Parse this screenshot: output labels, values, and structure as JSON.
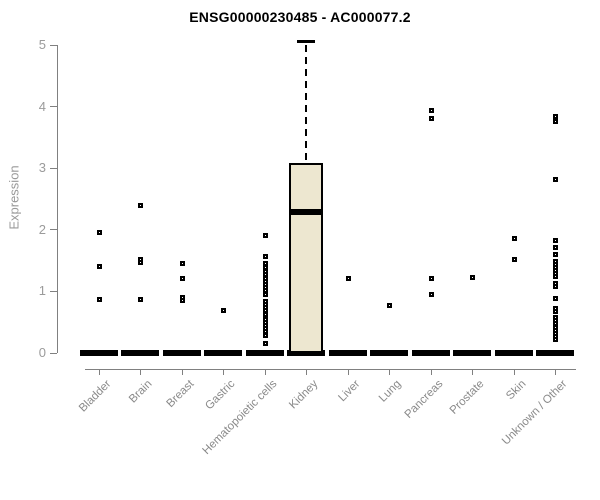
{
  "chart_data": {
    "type": "boxplot",
    "title": "ENSG00000230485 - AC000077.2",
    "ylabel": "Expression",
    "ylim": [
      0,
      5
    ],
    "yticks": [
      0,
      1,
      2,
      3,
      4,
      5
    ],
    "grid": false,
    "legend": "none",
    "colors": {
      "box_fill": "#EDE7D0",
      "box_line": "#000000",
      "axis": "#808080",
      "tick_label": "#9b9b9b",
      "category_label": "#8a8a8a",
      "title": "#000000"
    },
    "categories": [
      "Bladder",
      "Brain",
      "Breast",
      "Gastric",
      "Hematopoietic cells",
      "Kidney",
      "Liver",
      "Lung",
      "Pancreas",
      "Prostate",
      "Skin",
      "Unknown / Other"
    ],
    "series": [
      {
        "category": "Bladder",
        "box": {
          "q1": 0,
          "median": 0,
          "q3": 0,
          "whisker_low": 0,
          "whisker_high": 0
        },
        "outliers": [
          1.96,
          1.41,
          0.88
        ]
      },
      {
        "category": "Brain",
        "box": {
          "q1": 0,
          "median": 0,
          "q3": 0,
          "whisker_low": 0,
          "whisker_high": 0
        },
        "outliers": [
          2.4,
          1.53,
          1.48,
          0.88
        ]
      },
      {
        "category": "Breast",
        "box": {
          "q1": 0,
          "median": 0,
          "q3": 0,
          "whisker_low": 0,
          "whisker_high": 0
        },
        "outliers": [
          1.46,
          1.22,
          0.91,
          0.86
        ]
      },
      {
        "category": "Gastric",
        "box": {
          "q1": 0,
          "median": 0,
          "q3": 0,
          "whisker_low": 0,
          "whisker_high": 0
        },
        "outliers": [
          0.7
        ]
      },
      {
        "category": "Hematopoietic cells",
        "box": {
          "q1": 0,
          "median": 0,
          "q3": 0,
          "whisker_low": 0,
          "whisker_high": 0
        },
        "outliers": [
          1.92,
          1.58,
          1.46,
          1.4,
          1.33,
          1.28,
          1.22,
          1.17,
          1.12,
          1.07,
          1.02,
          0.95,
          0.84,
          0.79,
          0.74,
          0.69,
          0.64,
          0.55,
          0.5,
          0.45,
          0.4,
          0.35,
          0.3,
          0.16
        ]
      },
      {
        "category": "Kidney",
        "box": {
          "q1": 0,
          "median": 2.29,
          "q3": 3.08,
          "whisker_low": 0,
          "whisker_high": 5.05
        },
        "outliers": []
      },
      {
        "category": "Liver",
        "box": {
          "q1": 0,
          "median": 0,
          "q3": 0,
          "whisker_low": 0,
          "whisker_high": 0
        },
        "outliers": [
          1.21
        ]
      },
      {
        "category": "Lung",
        "box": {
          "q1": 0,
          "median": 0,
          "q3": 0,
          "whisker_low": 0,
          "whisker_high": 0
        },
        "outliers": [
          0.78
        ]
      },
      {
        "category": "Pancreas",
        "box": {
          "q1": 0,
          "median": 0,
          "q3": 0,
          "whisker_low": 0,
          "whisker_high": 0
        },
        "outliers": [
          3.94,
          3.81,
          1.22,
          0.95
        ]
      },
      {
        "category": "Prostate",
        "box": {
          "q1": 0,
          "median": 0,
          "q3": 0,
          "whisker_low": 0,
          "whisker_high": 0
        },
        "outliers": [
          1.24
        ]
      },
      {
        "category": "Skin",
        "box": {
          "q1": 0,
          "median": 0,
          "q3": 0,
          "whisker_low": 0,
          "whisker_high": 0
        },
        "outliers": [
          1.87,
          1.53
        ]
      },
      {
        "category": "Unknown / Other",
        "box": {
          "q1": 0,
          "median": 0,
          "q3": 0,
          "whisker_low": 0,
          "whisker_high": 0
        },
        "outliers": [
          3.84,
          3.77,
          2.82,
          1.83,
          1.72,
          1.61,
          1.5,
          1.45,
          1.4,
          1.35,
          1.3,
          1.25,
          1.14,
          1.08,
          0.89,
          0.73,
          0.68,
          0.58,
          0.53,
          0.48,
          0.43,
          0.38,
          0.33,
          0.28,
          0.23
        ]
      }
    ]
  }
}
